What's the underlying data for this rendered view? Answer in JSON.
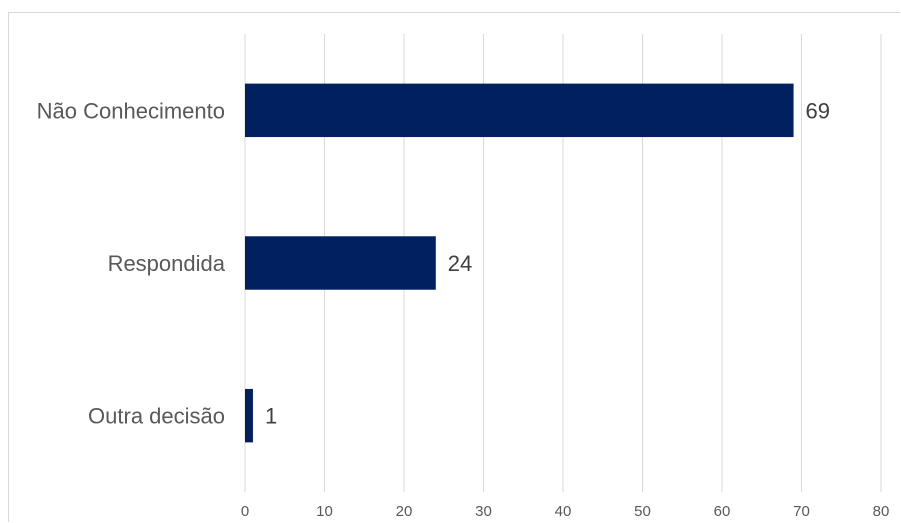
{
  "chart_data": {
    "type": "bar",
    "orientation": "horizontal",
    "categories": [
      "Não Conhecimento",
      "Respondida",
      "Outra decisão"
    ],
    "values": [
      69,
      24,
      1
    ],
    "data_labels": [
      "69",
      "24",
      "1"
    ],
    "xlim": [
      0,
      80
    ],
    "xticks": [
      0,
      10,
      20,
      30,
      40,
      50,
      60,
      70,
      80
    ],
    "xtick_labels": [
      "0",
      "10",
      "20",
      "30",
      "40",
      "50",
      "60",
      "70",
      "80"
    ],
    "grid": "vertical",
    "legend": "none",
    "bar_color": "#002060"
  }
}
